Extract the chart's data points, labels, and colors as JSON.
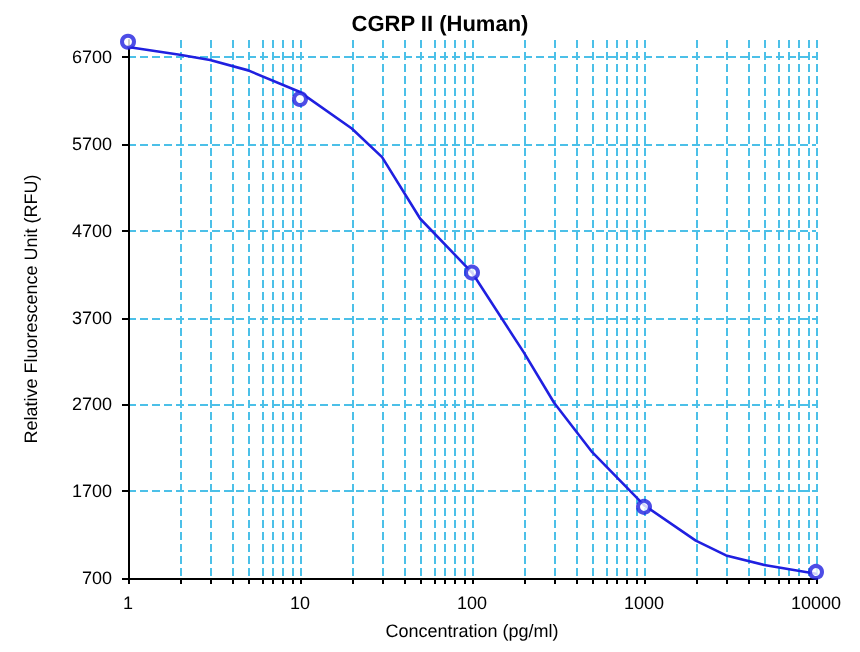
{
  "chart_data": {
    "type": "scatter",
    "title": "CGRP II (Human)",
    "xlabel": "Concentration (pg/ml)",
    "ylabel": "Relative Fluorescence Unit (RFU)",
    "log": "x",
    "grid": true,
    "xlim": [
      1,
      10000
    ],
    "ylim": [
      700,
      6900
    ],
    "xticks": [
      1,
      {
        "value": 2,
        "label": null
      },
      {
        "value": 3,
        "label": null
      },
      {
        "value": 4,
        "label": null
      },
      {
        "value": 5,
        "label": null
      },
      {
        "value": 6,
        "label": null
      },
      {
        "value": 7,
        "label": null
      },
      {
        "value": 8,
        "label": null
      },
      {
        "value": 9,
        "label": null
      },
      10,
      {
        "value": 20,
        "label": null
      },
      {
        "value": 30,
        "label": null
      },
      {
        "value": 40,
        "label": null
      },
      {
        "value": 50,
        "label": null
      },
      {
        "value": 60,
        "label": null
      },
      {
        "value": 70,
        "label": null
      },
      {
        "value": 80,
        "label": null
      },
      {
        "value": 90,
        "label": null
      },
      100,
      {
        "value": 200,
        "label": null
      },
      {
        "value": 300,
        "label": null
      },
      {
        "value": 400,
        "label": null
      },
      {
        "value": 500,
        "label": null
      },
      {
        "value": 600,
        "label": null
      },
      {
        "value": 700,
        "label": null
      },
      {
        "value": 800,
        "label": null
      },
      {
        "value": 900,
        "label": null
      },
      1000,
      {
        "value": 2000,
        "label": null
      },
      {
        "value": 3000,
        "label": null
      },
      {
        "value": 4000,
        "label": null
      },
      {
        "value": 5000,
        "label": null
      },
      {
        "value": 6000,
        "label": null
      },
      {
        "value": 7000,
        "label": null
      },
      {
        "value": 8000,
        "label": null
      },
      {
        "value": 9000,
        "label": null
      },
      10000
    ],
    "yticks": [
      700,
      1700,
      2700,
      3700,
      4700,
      5700,
      6700
    ],
    "series": [
      {
        "marker": "circle",
        "color": "#2020e0",
        "x": [
          1,
          10,
          100,
          1000,
          10000
        ],
        "values": [
          6880,
          6220,
          4220,
          1520,
          770
        ]
      },
      {
        "type": "line",
        "marker": "none",
        "line_style": "solid",
        "color": "#2020e0",
        "x": [
          1,
          2,
          3,
          5,
          10,
          20,
          30,
          50,
          100,
          200,
          300,
          500,
          1000,
          2000,
          3000,
          5000,
          10000
        ],
        "values": [
          6820,
          6730,
          6670,
          6550,
          6300,
          5880,
          5550,
          4840,
          4220,
          3300,
          2720,
          2150,
          1540,
          1130,
          960,
          850,
          750
        ]
      }
    ]
  }
}
